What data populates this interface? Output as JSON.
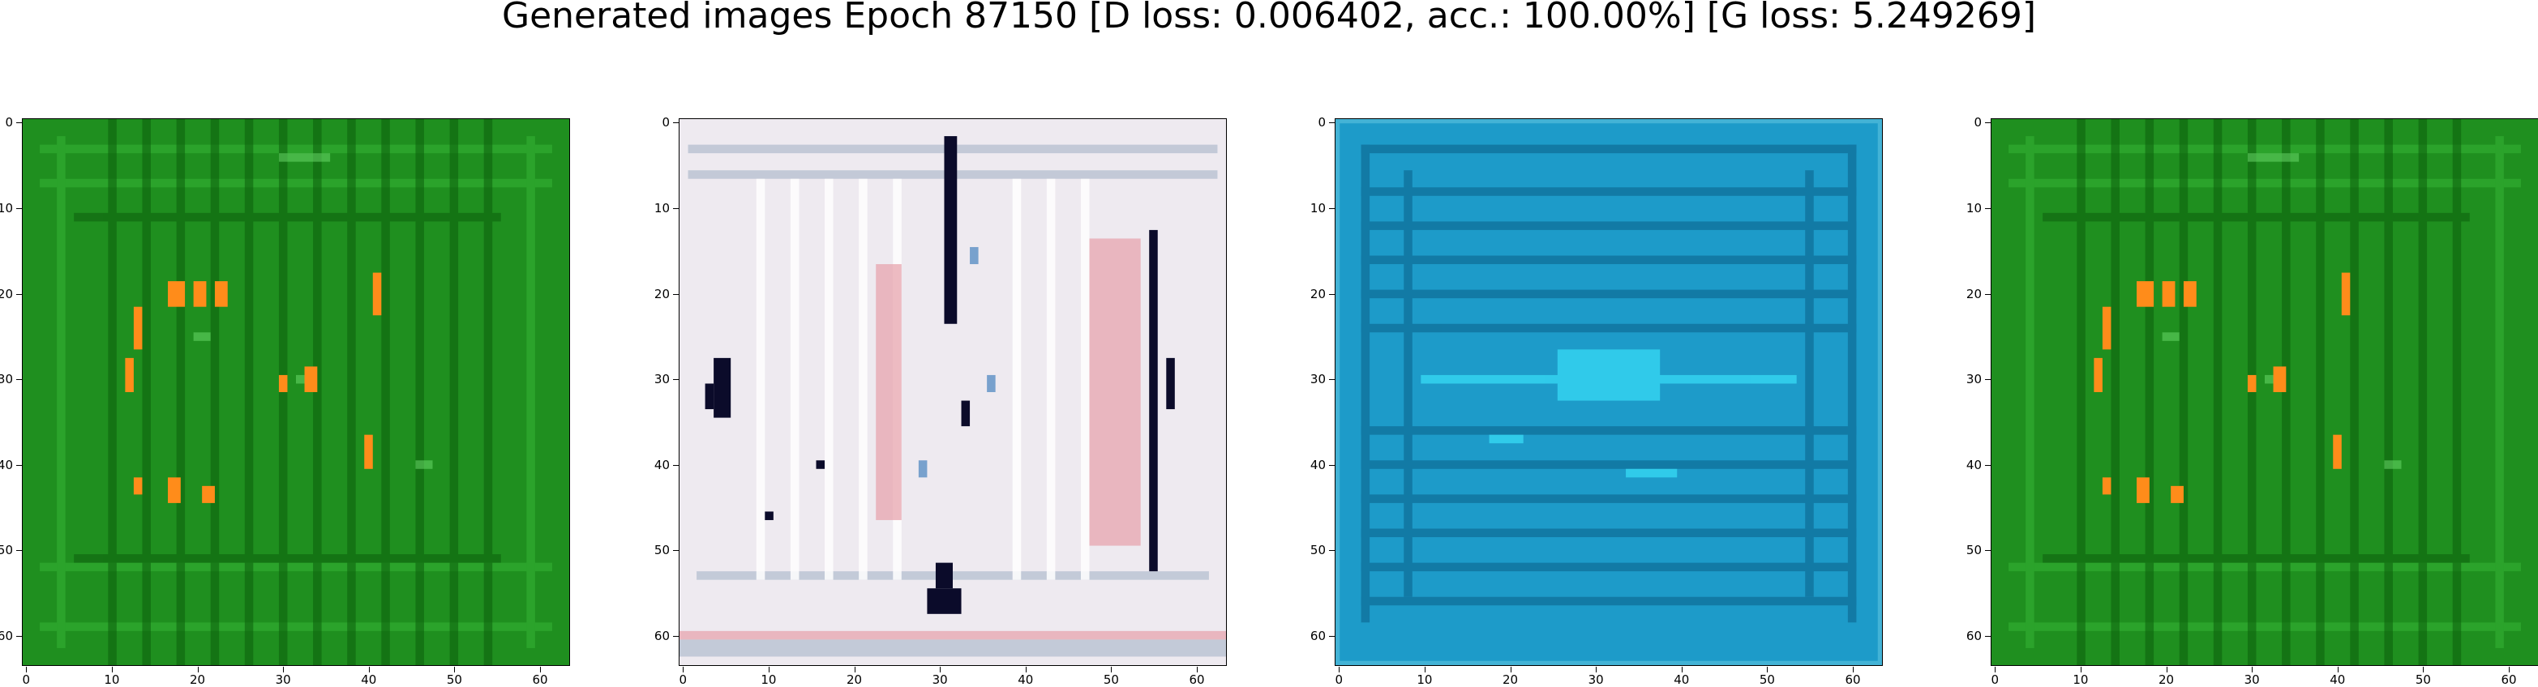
{
  "figure": {
    "title": "Generated images Epoch 87150 [D loss: 0.006402, acc.: 100.00%] [G loss: 5.249269]"
  },
  "axes_ticks": {
    "x": [
      "0",
      "10",
      "20",
      "30",
      "40",
      "50",
      "60"
    ],
    "y": [
      "0",
      "10",
      "20",
      "30",
      "40",
      "50",
      "60"
    ]
  },
  "panels": [
    {
      "id": "green",
      "base_color": "#1f8f1f",
      "grid_color": "#4fd04f",
      "blob_color": "#ff8c1a",
      "content": "green-noise-with-orange-blobs"
    },
    {
      "id": "white",
      "base_color": "#eeeaf0",
      "grid_color": "#c9d6ea",
      "blob_color": "#0b0b2a",
      "content": "white-noise-with-dark-spots"
    },
    {
      "id": "cyan",
      "base_color": "#1d9bc9",
      "grid_color": "#0f6f9a",
      "blob_color": "#34d3f0",
      "content": "cyan-horizontal-stripes"
    },
    {
      "id": "green-2",
      "base_color": "#1f8f1f",
      "grid_color": "#4fd04f",
      "blob_color": "#ff8c1a",
      "content": "green-noise-with-orange-blobs"
    }
  ]
}
